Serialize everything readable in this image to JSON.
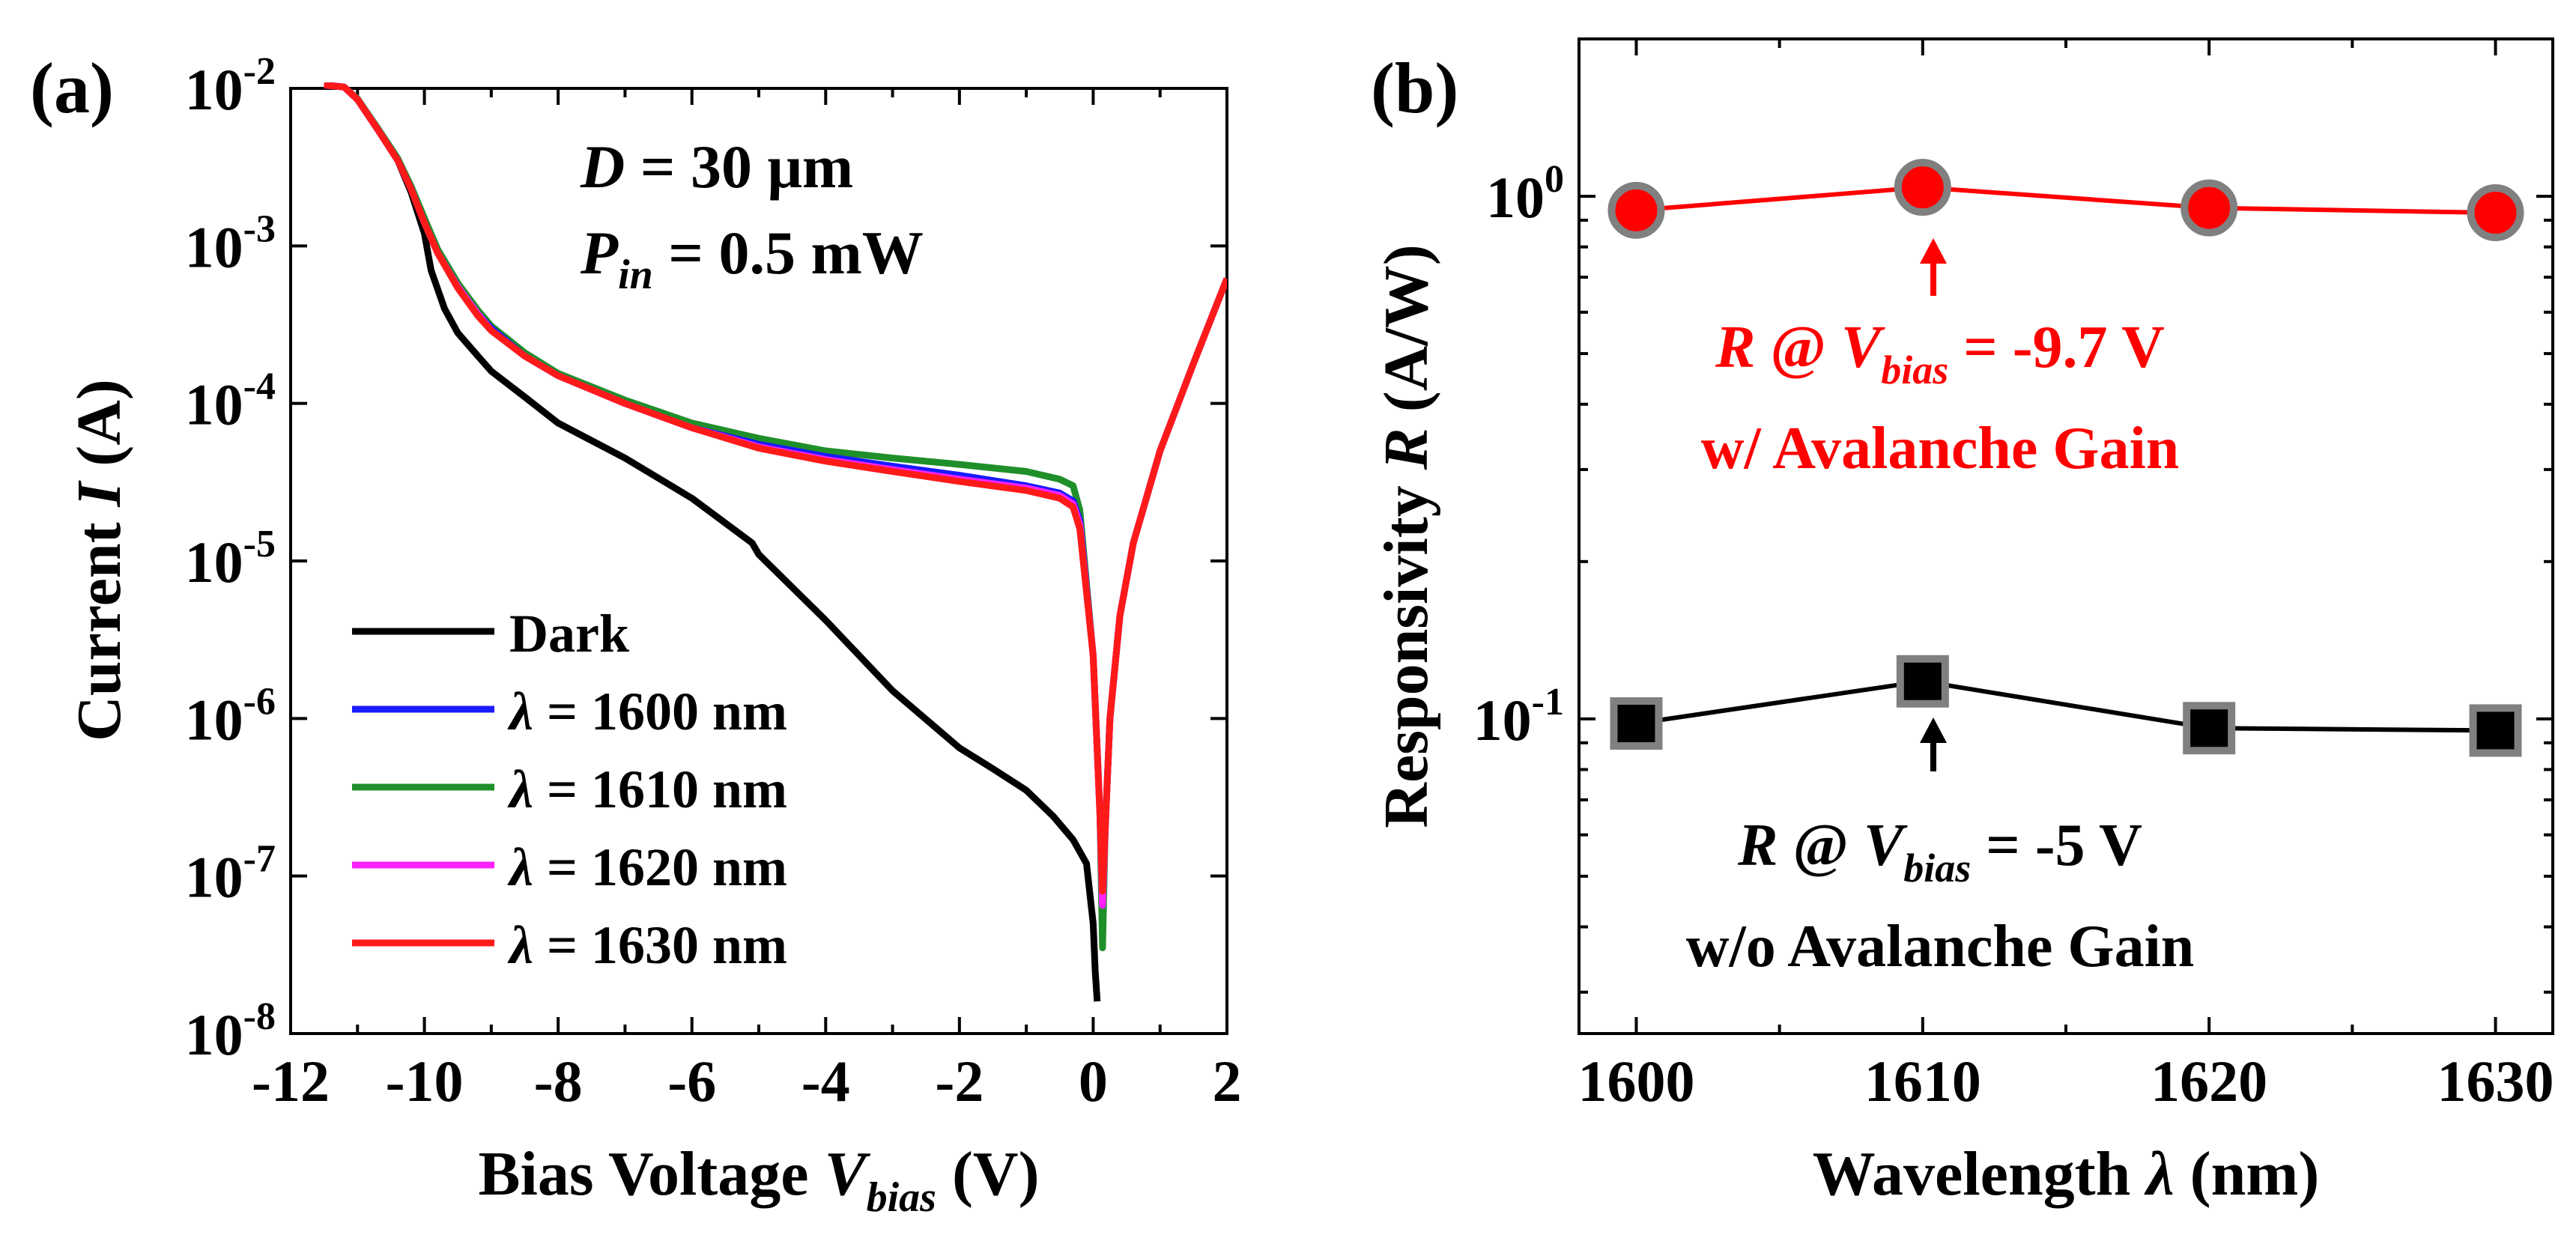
{
  "figure": {
    "panel_a_label": "(a)",
    "panel_b_label": "(b)"
  },
  "chart_data": [
    {
      "type": "line",
      "panel": "(a)",
      "yscale": "log",
      "xlim": [
        -12,
        2
      ],
      "ylim": [
        1e-08,
        0.01
      ],
      "xlabel": {
        "main": "Bias Voltage ",
        "italic": "V",
        "sub": "bias",
        "tail": " (V)"
      },
      "ylabel": {
        "main": "Current ",
        "italic": "I",
        "tail": " (A)"
      },
      "x_ticks": [
        -12,
        -10,
        -8,
        -6,
        -4,
        -2,
        0,
        2
      ],
      "x_tick_labels": [
        "-12",
        "-10",
        "-8",
        "-6",
        "-4",
        "-2",
        "0",
        "2"
      ],
      "y_ticks": [
        1e-08,
        1e-07,
        1e-06,
        1e-05,
        0.0001,
        0.001,
        0.01
      ],
      "y_tick_labels": [
        {
          "base": "10",
          "exp": "-8"
        },
        {
          "base": "10",
          "exp": "-7"
        },
        {
          "base": "10",
          "exp": "-6"
        },
        {
          "base": "10",
          "exp": "-5"
        },
        {
          "base": "10",
          "exp": "-4"
        },
        {
          "base": "10",
          "exp": "-3"
        },
        {
          "base": "10",
          "exp": "-2"
        }
      ],
      "annotation": {
        "line1": {
          "italic": "D",
          "text": " = 30 μm"
        },
        "line2": {
          "italic": "P",
          "sub": "in",
          "text": " = 0.5 mW"
        }
      },
      "legend_position": "lower-left",
      "series": [
        {
          "name": "Dark",
          "legend": {
            "text": "Dark"
          },
          "color": "#000000",
          "x": [
            -11.5,
            -11.2,
            -11.0,
            -10.7,
            -10.4,
            -10.2,
            -10.0,
            -9.9,
            -9.7,
            -9.5,
            -9.2,
            -9.0,
            -8.5,
            -8.0,
            -7.0,
            -6.0,
            -5.1,
            -5.0,
            -4.0,
            -3.0,
            -2.0,
            -1.5,
            -1.0,
            -0.6,
            -0.3,
            -0.1,
            0.0,
            0.03,
            0.06
          ],
          "y": [
            0.0105,
            0.0102,
            0.0085,
            0.0055,
            0.0035,
            0.0022,
            0.0012,
            0.0007,
            0.0004,
            0.00028,
            0.0002,
            0.00016,
            0.00011,
            7.5e-05,
            4.5e-05,
            2.5e-05,
            1.3e-05,
            1.1e-05,
            4.2e-06,
            1.5e-06,
            6.5e-07,
            4.8e-07,
            3.5e-07,
            2.4e-07,
            1.7e-07,
            1.2e-07,
            5e-08,
            2.5e-08,
            1.6e-08
          ]
        },
        {
          "name": "1600",
          "legend": {
            "italic": "λ",
            "text": " = 1600 nm"
          },
          "color": "#1a1aff",
          "x": [
            -11.5,
            -11.2,
            -11.0,
            -10.7,
            -10.4,
            -10.2,
            -10.0,
            -9.8,
            -9.5,
            -9.2,
            -9.0,
            -8.5,
            -8.0,
            -7.0,
            -6.0,
            -5.0,
            -4.0,
            -3.0,
            -2.0,
            -1.0,
            -0.5,
            -0.3,
            -0.2,
            0.0,
            0.1,
            0.14,
            0.18,
            0.25,
            0.4,
            0.6,
            1.0,
            1.5,
            2.0
          ],
          "y": [
            0.0105,
            0.0102,
            0.0085,
            0.0055,
            0.0035,
            0.0023,
            0.0014,
            0.0009,
            0.00055,
            0.00037,
            0.0003,
            0.0002,
            0.00015,
            0.0001,
            7e-05,
            5.5e-05,
            4.6e-05,
            4e-05,
            3.5e-05,
            3e-05,
            2.7e-05,
            2.4e-05,
            1.8e-05,
            2.5e-06,
            2.5e-07,
            7e-08,
            2e-07,
            1e-06,
            4.5e-06,
            1.3e-05,
            5e-05,
            0.00018,
            0.00062
          ]
        },
        {
          "name": "1610",
          "legend": {
            "italic": "λ",
            "text": " = 1610 nm"
          },
          "color": "#1f8f2a",
          "x": [
            -11.5,
            -11.2,
            -11.0,
            -10.7,
            -10.4,
            -10.2,
            -10.0,
            -9.8,
            -9.5,
            -9.2,
            -9.0,
            -8.5,
            -8.0,
            -7.0,
            -6.0,
            -5.0,
            -4.0,
            -3.0,
            -2.0,
            -1.0,
            -0.5,
            -0.3,
            -0.2,
            0.0,
            0.1,
            0.14,
            0.18,
            0.25,
            0.4,
            0.6,
            1.0,
            1.5,
            2.0
          ],
          "y": [
            0.0105,
            0.0102,
            0.0086,
            0.0056,
            0.0036,
            0.0024,
            0.0015,
            0.00095,
            0.00058,
            0.00039,
            0.00031,
            0.00021,
            0.000155,
            0.000105,
            7.5e-05,
            6e-05,
            5e-05,
            4.5e-05,
            4.1e-05,
            3.7e-05,
            3.3e-05,
            3e-05,
            2.1e-05,
            2.5e-06,
            2.5e-07,
            3.5e-08,
            2e-07,
            1e-06,
            4.5e-06,
            1.3e-05,
            5e-05,
            0.00018,
            0.00062
          ]
        },
        {
          "name": "1620",
          "legend": {
            "italic": "λ",
            "text": " = 1620 nm"
          },
          "color": "#ff22ff",
          "x": [
            -11.5,
            -11.2,
            -11.0,
            -10.7,
            -10.4,
            -10.2,
            -10.0,
            -9.8,
            -9.5,
            -9.2,
            -9.0,
            -8.5,
            -8.0,
            -7.0,
            -6.0,
            -5.0,
            -4.0,
            -3.0,
            -2.0,
            -1.0,
            -0.5,
            -0.3,
            -0.2,
            0.0,
            0.1,
            0.14,
            0.18,
            0.25,
            0.4,
            0.6,
            1.0,
            1.5,
            2.0
          ],
          "y": [
            0.0105,
            0.0102,
            0.0085,
            0.0055,
            0.0035,
            0.0023,
            0.0014,
            0.0009,
            0.00055,
            0.00037,
            0.00029,
            0.0002,
            0.00015,
            0.0001,
            7e-05,
            5.3e-05,
            4.4e-05,
            3.8e-05,
            3.3e-05,
            2.9e-05,
            2.6e-05,
            2.3e-05,
            1.7e-05,
            2.5e-06,
            2.5e-07,
            6.5e-08,
            2e-07,
            1e-06,
            4.5e-06,
            1.3e-05,
            5e-05,
            0.00018,
            0.00062
          ]
        },
        {
          "name": "1630",
          "legend": {
            "italic": "λ",
            "text": " = 1630 nm"
          },
          "color": "#ff1a1a",
          "x": [
            -11.5,
            -11.2,
            -11.0,
            -10.7,
            -10.4,
            -10.2,
            -10.0,
            -9.8,
            -9.5,
            -9.2,
            -9.0,
            -8.5,
            -8.0,
            -7.0,
            -6.0,
            -5.0,
            -4.0,
            -3.0,
            -2.0,
            -1.0,
            -0.5,
            -0.3,
            -0.2,
            0.0,
            0.1,
            0.14,
            0.18,
            0.25,
            0.4,
            0.6,
            1.0,
            1.5,
            2.0
          ],
          "y": [
            0.0105,
            0.0102,
            0.0085,
            0.0055,
            0.0035,
            0.0023,
            0.0014,
            0.0009,
            0.00054,
            0.00036,
            0.00029,
            0.0002,
            0.00015,
            0.0001,
            7e-05,
            5.2e-05,
            4.3e-05,
            3.7e-05,
            3.2e-05,
            2.8e-05,
            2.5e-05,
            2.2e-05,
            1.6e-05,
            2.5e-06,
            2.5e-07,
            8e-08,
            2e-07,
            1e-06,
            4.5e-06,
            1.3e-05,
            5e-05,
            0.00018,
            0.00062
          ]
        }
      ]
    },
    {
      "type": "line",
      "panel": "(b)",
      "yscale": "log",
      "xlim": [
        1598,
        1632
      ],
      "ylim": [
        0.025,
        2.0
      ],
      "xlabel": {
        "main": "Wavelength ",
        "italic": "λ",
        "tail": " (nm)"
      },
      "ylabel": {
        "main": "Responsivity ",
        "italic": "R",
        "tail": " (A/W)"
      },
      "x_ticks": [
        1600,
        1610,
        1620,
        1630
      ],
      "x_tick_labels": [
        "1600",
        "1610",
        "1620",
        "1630"
      ],
      "y_ticks": [
        0.1,
        1.0
      ],
      "y_tick_labels": [
        {
          "base": "10",
          "exp": "-1"
        },
        {
          "base": "10",
          "exp": "0"
        }
      ],
      "series": [
        {
          "name": "w/ Avalanche Gain",
          "marker": "circle",
          "color": "#ff0000",
          "marker_edge": "#808080",
          "x": [
            1600,
            1610,
            1620,
            1630
          ],
          "y": [
            0.94,
            1.04,
            0.95,
            0.93
          ]
        },
        {
          "name": "w/o Avalanche Gain",
          "marker": "square",
          "color": "#000000",
          "marker_edge": "#808080",
          "x": [
            1600,
            1610,
            1620,
            1630
          ],
          "y": [
            0.098,
            0.118,
            0.096,
            0.095
          ]
        }
      ],
      "annotations": [
        {
          "name": "red",
          "color": "#ff0000",
          "at_x": 1610,
          "line1": {
            "italic": "R",
            "mid": " @ ",
            "italic2": "V",
            "sub": "bias",
            "text": " = -9.7 V"
          },
          "line2": "w/ Avalanche Gain"
        },
        {
          "name": "black",
          "color": "#000000",
          "at_x": 1610,
          "line1": {
            "italic": "R",
            "mid": " @ ",
            "italic2": "V",
            "sub": "bias",
            "text": " = -5 V"
          },
          "line2": "w/o Avalanche Gain"
        }
      ]
    }
  ]
}
